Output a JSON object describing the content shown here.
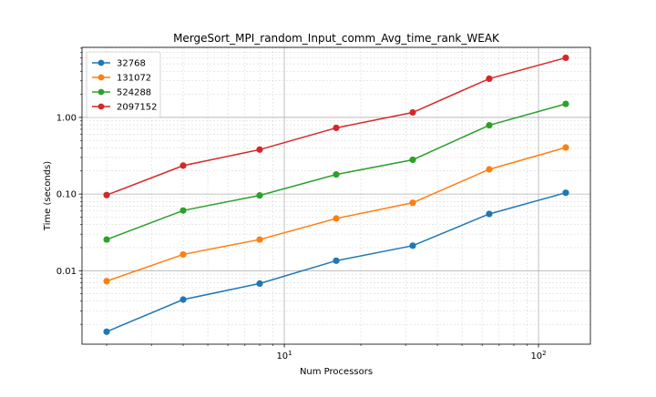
{
  "chart_data": {
    "type": "line",
    "title": "MergeSort_MPI_random_Input_comm_Avg_time_rank_WEAK",
    "xlabel": "Num Processors",
    "ylabel": "Time (seconds)",
    "x_scale": "log",
    "y_scale": "log",
    "xlim": [
      1.6,
      160
    ],
    "ylim": [
      0.0011,
      8.2
    ],
    "x": [
      2,
      4,
      8,
      16,
      32,
      64,
      128
    ],
    "x_ticks": [
      {
        "value": 10,
        "base": "10",
        "exp": "1"
      },
      {
        "value": 100,
        "base": "10",
        "exp": "2"
      }
    ],
    "y_ticks": [
      {
        "value": 0.01,
        "label": "0.01"
      },
      {
        "value": 0.1,
        "label": "0.10"
      },
      {
        "value": 1,
        "label": "1.00"
      }
    ],
    "grid": true,
    "legend_position": "top-left",
    "series": [
      {
        "name": "32768",
        "color": "#1f77b4",
        "values": [
          0.0016,
          0.0042,
          0.0068,
          0.0135,
          0.0212,
          0.055,
          0.104
        ]
      },
      {
        "name": "131072",
        "color": "#ff7f0e",
        "values": [
          0.0073,
          0.0163,
          0.0255,
          0.048,
          0.077,
          0.21,
          0.405
        ]
      },
      {
        "name": "524288",
        "color": "#2ca02c",
        "values": [
          0.0255,
          0.061,
          0.096,
          0.18,
          0.28,
          0.79,
          1.5
        ]
      },
      {
        "name": "2097152",
        "color": "#d62728",
        "values": [
          0.097,
          0.235,
          0.38,
          0.73,
          1.16,
          3.2,
          6.0
        ]
      }
    ]
  }
}
